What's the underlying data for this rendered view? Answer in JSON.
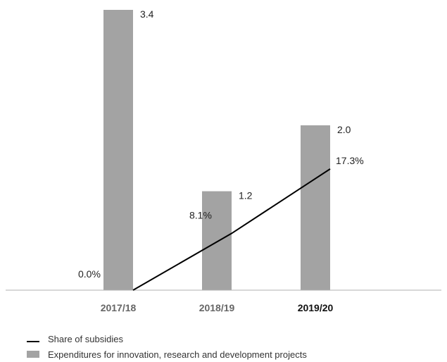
{
  "chart_data": {
    "type": "bar",
    "categories": [
      "2017/18",
      "2018/19",
      "2019/20"
    ],
    "highlight_category": "2019/20",
    "series": [
      {
        "name": "Expenditures for innovation, research and development projects",
        "kind": "bar",
        "values": [
          3.4,
          1.2,
          2.0
        ],
        "labels": [
          "3.4",
          "1.2",
          "2.0"
        ],
        "color": "#a3a3a3"
      },
      {
        "name": "Share of subsidies",
        "kind": "line",
        "values": [
          0.0,
          8.1,
          17.3
        ],
        "labels": [
          "0.0%",
          "8.1%",
          "17.3%"
        ],
        "color": "#000000"
      }
    ],
    "bar_ylim": [
      0,
      3.4
    ],
    "line_ylim": [
      0,
      40
    ],
    "grid": false,
    "legend_position": "bottom-left"
  },
  "legend": {
    "line_label": "Share of subsidies",
    "bar_label": "Expenditures for innovation, research and development projects"
  }
}
